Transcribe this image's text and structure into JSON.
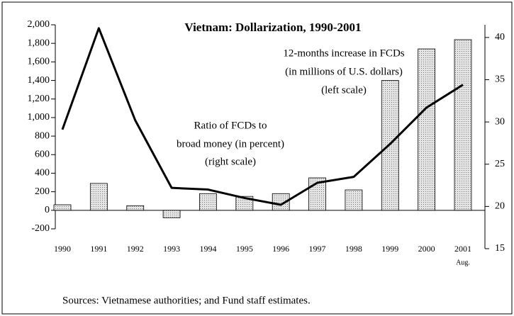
{
  "chart_data": {
    "type": "bar-line",
    "title": "Vietnam:  Dollarization, 1990-2001",
    "categories": [
      "1990",
      "1991",
      "1992",
      "1993",
      "1994",
      "1995",
      "1996",
      "1997",
      "1998",
      "1999",
      "2000",
      "2001"
    ],
    "category_note": "Aug.",
    "series": [
      {
        "name": "12-months increase in FCDs (in millions of U.S. dollars) (left scale)",
        "type": "bar",
        "color": "#d0d0d0",
        "values": [
          60,
          290,
          50,
          -80,
          180,
          150,
          180,
          350,
          220,
          1400,
          1740,
          1840
        ]
      },
      {
        "name": "Ratio of FCDs to broad money (in percent) (right scale)",
        "type": "line",
        "color": "#000000",
        "axis": "y2",
        "values": [
          29.1,
          41.1,
          30.2,
          22.2,
          22.0,
          21.0,
          20.2,
          22.8,
          23.5,
          27.4,
          31.7,
          34.4
        ]
      }
    ],
    "annotations": [
      "12-months increase in FCDs",
      "(in millions of U.S. dollars)",
      "(left scale)",
      "Ratio of FCDs to",
      "broad money (in percent)",
      "(right scale)"
    ],
    "source": "Sources: Vietnamese authorities; and Fund staff estimates.",
    "ylim": [
      -200,
      2000
    ],
    "yticks": [
      {
        "value": -200,
        "label": "-200"
      },
      0,
      200,
      400,
      600,
      800,
      {
        "value": 1000,
        "label": "1,000"
      },
      {
        "value": 1200,
        "label": "1,200"
      },
      {
        "value": 1400,
        "label": "1,400"
      },
      {
        "value": 1600,
        "label": "1,600"
      },
      {
        "value": 1800,
        "label": "1,800"
      },
      {
        "value": 2000,
        "label": "2,000"
      }
    ],
    "y2lim": [
      15,
      41.5
    ],
    "y2ticks": [
      15,
      20,
      25,
      30,
      35,
      40
    ]
  }
}
